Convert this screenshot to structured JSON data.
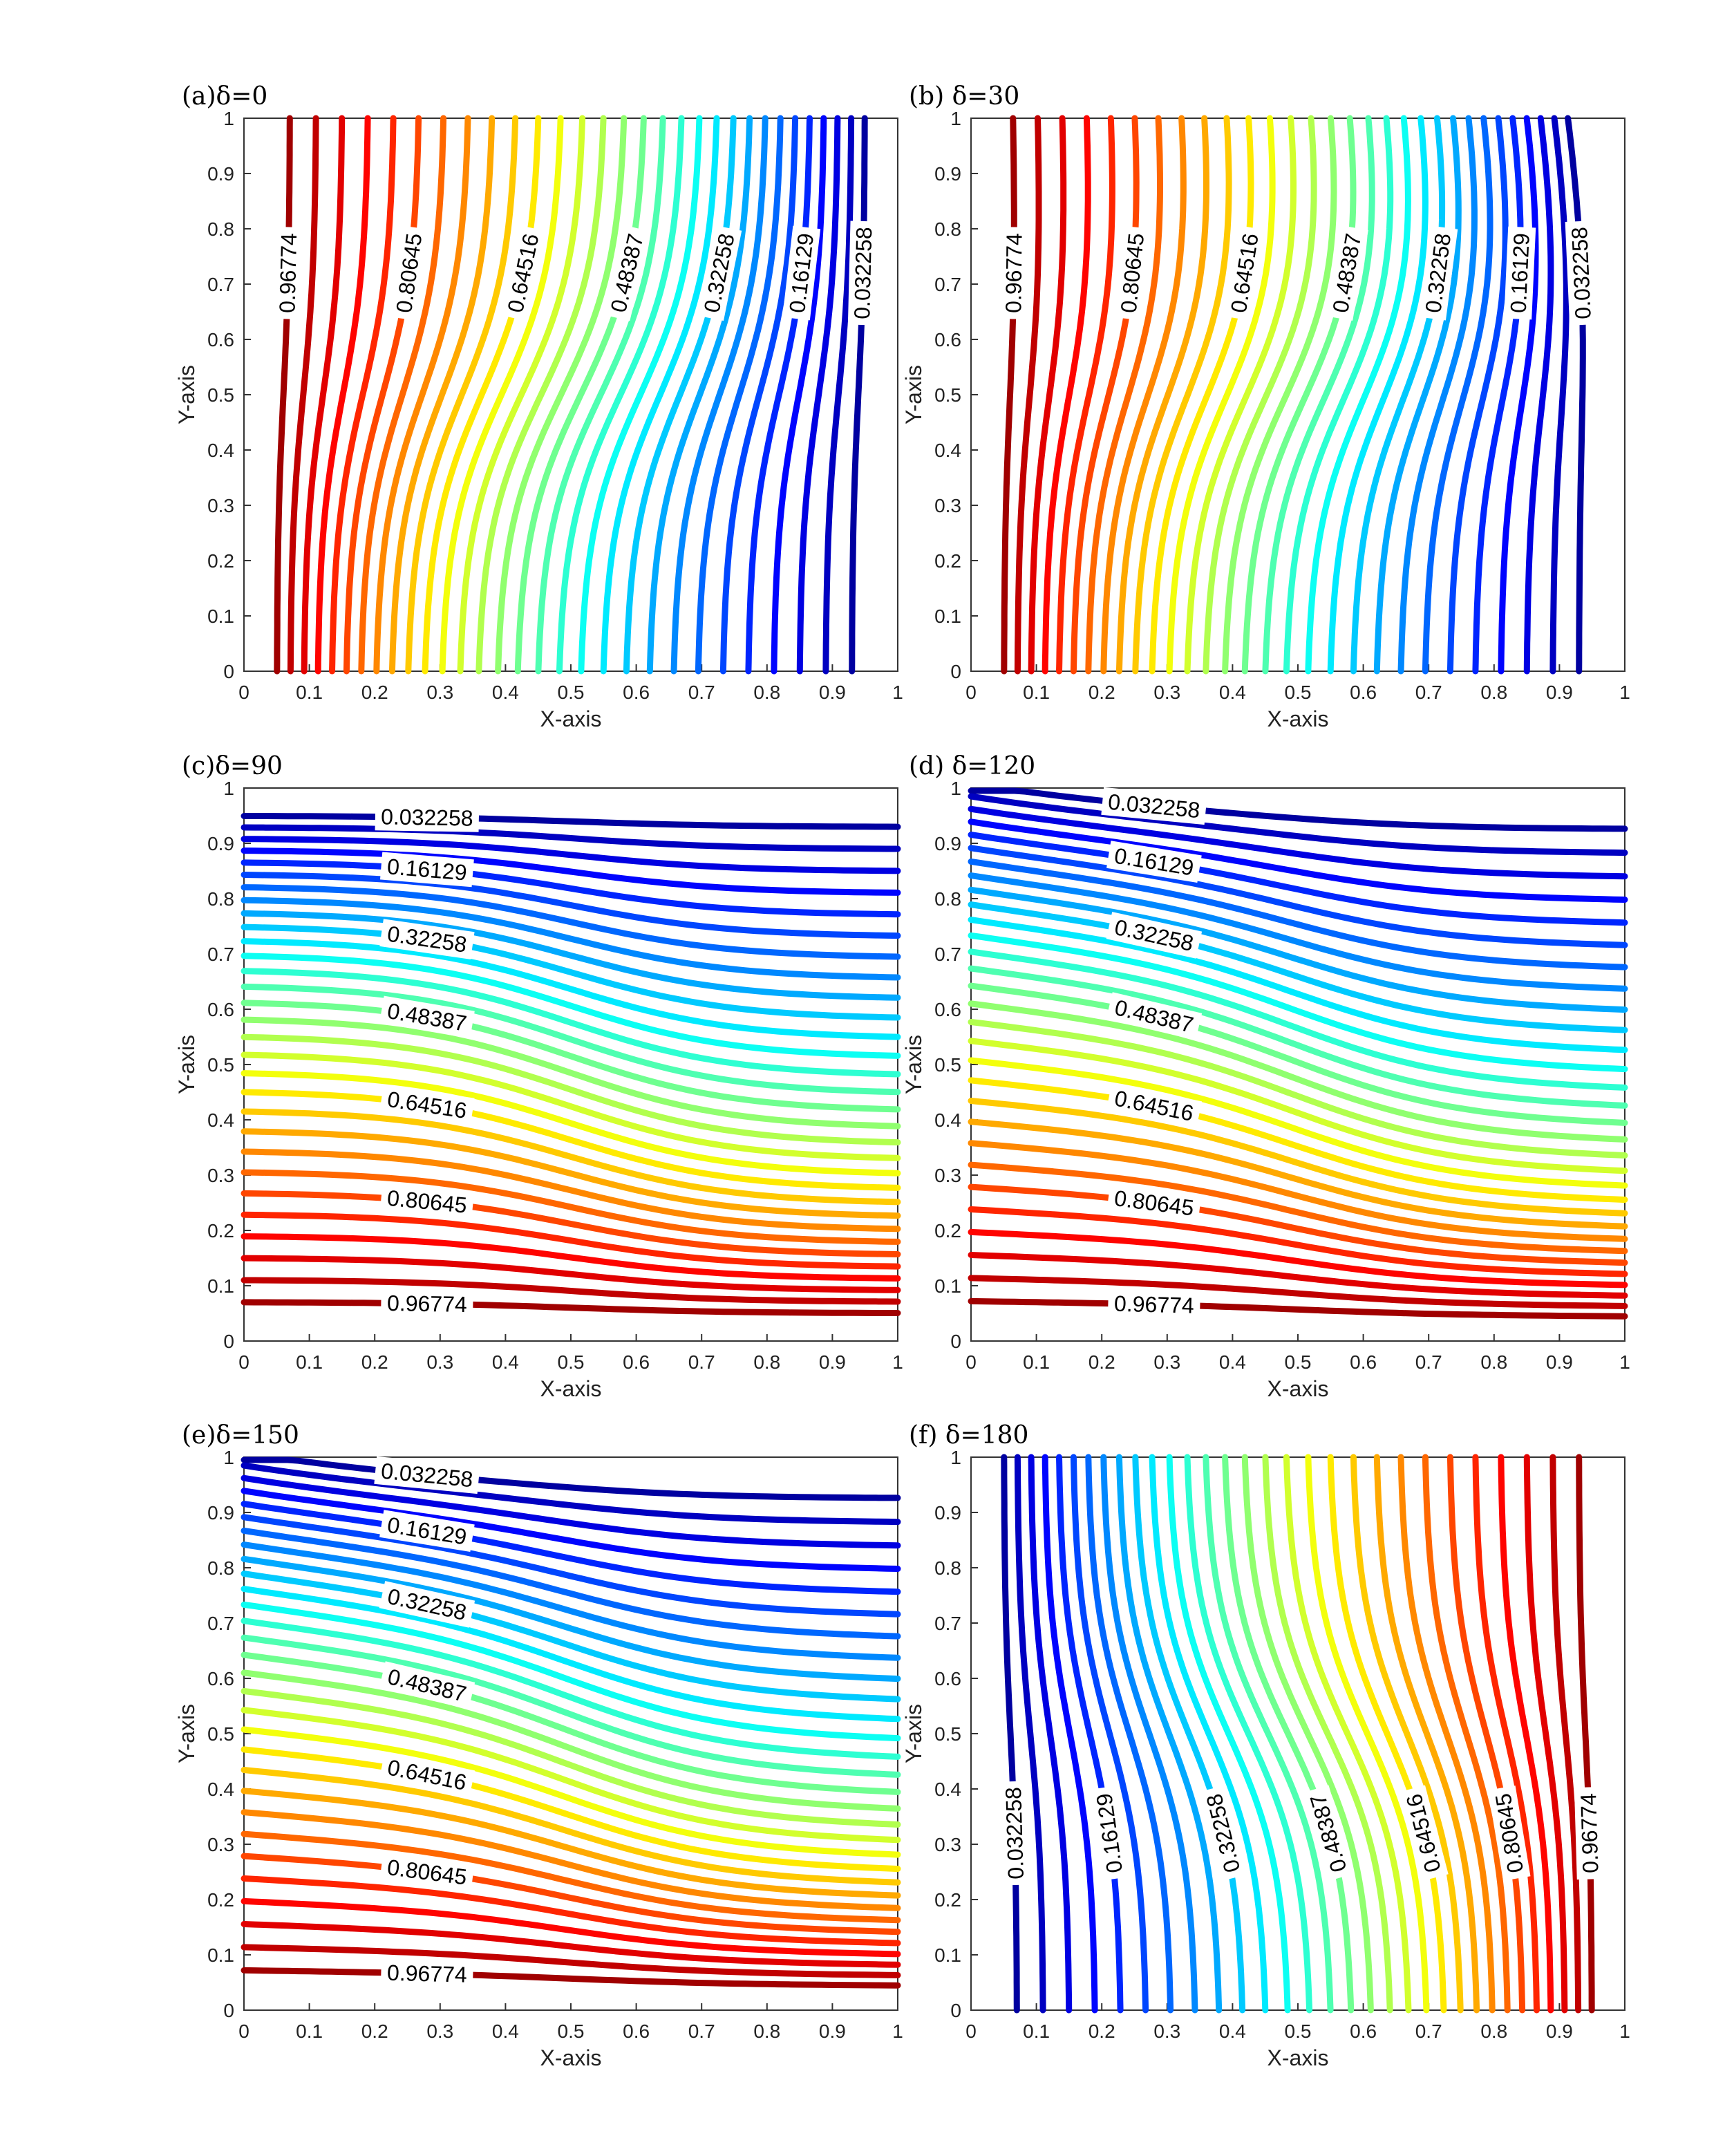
{
  "figure": {
    "xlabel": "X-axis",
    "ylabel": "Y-axis",
    "xticks": [
      "0",
      "0.1",
      "0.2",
      "0.3",
      "0.4",
      "0.5",
      "0.6",
      "0.7",
      "0.8",
      "0.9",
      "1"
    ],
    "yticks": [
      "0",
      "0.1",
      "0.2",
      "0.3",
      "0.4",
      "0.5",
      "0.6",
      "0.7",
      "0.8",
      "0.9",
      "1"
    ]
  },
  "chart_data": [
    {
      "type": "contour",
      "title": "(a)δ=0",
      "delta": 0,
      "orientation": "vertical",
      "high_side": "left",
      "fan_corner": "none",
      "xlabel": "X-axis",
      "ylabel": "Y-axis",
      "xlim": [
        0,
        1
      ],
      "ylim": [
        0,
        1
      ],
      "colormap": "jet",
      "levels": [
        0.032258,
        0.064516,
        0.096774,
        0.129032,
        0.16129,
        0.193548,
        0.225806,
        0.258065,
        0.290323,
        0.322581,
        0.354839,
        0.387097,
        0.419355,
        0.451613,
        0.483871,
        0.516129,
        0.548387,
        0.580645,
        0.612903,
        0.645161,
        0.677419,
        0.709677,
        0.741935,
        0.774194,
        0.806452,
        0.83871,
        0.870968,
        0.903226,
        0.935484,
        0.967742
      ],
      "labeled_levels": [
        "0.032258",
        "0.16129",
        "0.32258",
        "0.48387",
        "0.64516",
        "0.80645",
        "0.96774"
      ]
    },
    {
      "type": "contour",
      "title": "(b) δ=30",
      "delta": 30,
      "orientation": "vertical",
      "high_side": "left",
      "fan_corner": "top-right",
      "xlabel": "X-axis",
      "ylabel": "Y-axis",
      "xlim": [
        0,
        1
      ],
      "ylim": [
        0,
        1
      ],
      "colormap": "jet",
      "levels": [
        0.032258,
        0.064516,
        0.096774,
        0.129032,
        0.16129,
        0.193548,
        0.225806,
        0.258065,
        0.290323,
        0.322581,
        0.354839,
        0.387097,
        0.419355,
        0.451613,
        0.483871,
        0.516129,
        0.548387,
        0.580645,
        0.612903,
        0.645161,
        0.677419,
        0.709677,
        0.741935,
        0.774194,
        0.806452,
        0.83871,
        0.870968,
        0.903226,
        0.935484,
        0.967742
      ],
      "labeled_levels": [
        "0.032258",
        "0.16129",
        "0.32258",
        "0.48387",
        "0.64516",
        "0.80645",
        "0.96774"
      ]
    },
    {
      "type": "contour",
      "title": "(c)δ=90",
      "delta": 90,
      "orientation": "horizontal",
      "high_side": "bottom",
      "fan_corner": "none",
      "xlabel": "X-axis",
      "ylabel": "Y-axis",
      "xlim": [
        0,
        1
      ],
      "ylim": [
        0,
        1
      ],
      "colormap": "jet",
      "levels": [
        0.032258,
        0.064516,
        0.096774,
        0.129032,
        0.16129,
        0.193548,
        0.225806,
        0.258065,
        0.290323,
        0.322581,
        0.354839,
        0.387097,
        0.419355,
        0.451613,
        0.483871,
        0.516129,
        0.548387,
        0.580645,
        0.612903,
        0.645161,
        0.677419,
        0.709677,
        0.741935,
        0.774194,
        0.806452,
        0.83871,
        0.870968,
        0.903226,
        0.935484,
        0.967742
      ],
      "labeled_levels": [
        "0.032258",
        "0.16129",
        "0.32258",
        "0.48387",
        "0.64516",
        "0.80645",
        "0.96774"
      ]
    },
    {
      "type": "contour",
      "title": "(d) δ=120",
      "delta": 120,
      "orientation": "horizontal",
      "high_side": "bottom",
      "fan_corner": "top-left",
      "xlabel": "X-axis",
      "ylabel": "Y-axis",
      "xlim": [
        0,
        1
      ],
      "ylim": [
        0,
        1
      ],
      "colormap": "jet",
      "levels": [
        0.032258,
        0.064516,
        0.096774,
        0.129032,
        0.16129,
        0.193548,
        0.225806,
        0.258065,
        0.290323,
        0.322581,
        0.354839,
        0.387097,
        0.419355,
        0.451613,
        0.483871,
        0.516129,
        0.548387,
        0.580645,
        0.612903,
        0.645161,
        0.677419,
        0.709677,
        0.741935,
        0.774194,
        0.806452,
        0.83871,
        0.870968,
        0.903226,
        0.935484,
        0.967742
      ],
      "labeled_levels": [
        "0.032258",
        "0.16129",
        "0.32258",
        "0.48387",
        "0.64516",
        "0.80645",
        "0.96774"
      ]
    },
    {
      "type": "contour",
      "title": "(e)δ=150",
      "delta": 150,
      "orientation": "horizontal",
      "high_side": "bottom",
      "fan_corner": "top-left",
      "xlabel": "X-axis",
      "ylabel": "Y-axis",
      "xlim": [
        0,
        1
      ],
      "ylim": [
        0,
        1
      ],
      "colormap": "jet",
      "levels": [
        0.032258,
        0.064516,
        0.096774,
        0.129032,
        0.16129,
        0.193548,
        0.225806,
        0.258065,
        0.290323,
        0.322581,
        0.354839,
        0.387097,
        0.419355,
        0.451613,
        0.483871,
        0.516129,
        0.548387,
        0.580645,
        0.612903,
        0.645161,
        0.677419,
        0.709677,
        0.741935,
        0.774194,
        0.806452,
        0.83871,
        0.870968,
        0.903226,
        0.935484,
        0.967742
      ],
      "labeled_levels": [
        "0.032258",
        "0.16129",
        "0.32258",
        "0.48387",
        "0.64516",
        "0.80645",
        "0.96774"
      ]
    },
    {
      "type": "contour",
      "title": "(f) δ=180",
      "delta": 180,
      "orientation": "vertical",
      "high_side": "right",
      "fan_corner": "none",
      "xlabel": "X-axis",
      "ylabel": "Y-axis",
      "xlim": [
        0,
        1
      ],
      "ylim": [
        0,
        1
      ],
      "colormap": "jet",
      "levels": [
        0.032258,
        0.064516,
        0.096774,
        0.129032,
        0.16129,
        0.193548,
        0.225806,
        0.258065,
        0.290323,
        0.322581,
        0.354839,
        0.387097,
        0.419355,
        0.451613,
        0.483871,
        0.516129,
        0.548387,
        0.580645,
        0.612903,
        0.645161,
        0.677419,
        0.709677,
        0.741935,
        0.774194,
        0.806452,
        0.83871,
        0.870968,
        0.903226,
        0.935484,
        0.967742
      ],
      "labeled_levels": [
        "0.032258",
        "0.16129",
        "0.32258",
        "0.48387",
        "0.64516",
        "0.80645",
        "0.96774"
      ]
    }
  ]
}
